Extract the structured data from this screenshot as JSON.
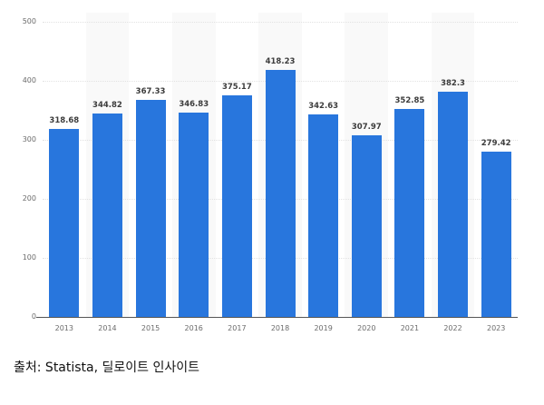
{
  "chart_data": {
    "type": "bar",
    "title": "",
    "xlabel": "",
    "ylabel": "",
    "categories": [
      "2013",
      "2014",
      "2015",
      "2016",
      "2017",
      "2018",
      "2019",
      "2020",
      "2021",
      "2022",
      "2023"
    ],
    "values": [
      318.68,
      344.82,
      367.33,
      346.83,
      375.17,
      418.23,
      342.63,
      307.97,
      352.85,
      382.3,
      279.42
    ],
    "value_labels": [
      "318.68",
      "344.82",
      "367.33",
      "346.83",
      "375.17",
      "418.23",
      "342.63",
      "307.97",
      "352.85",
      "382.3",
      "279.42"
    ],
    "ylim": [
      0,
      500
    ],
    "yticks": [
      "0",
      "100",
      "200",
      "300",
      "400",
      "500"
    ],
    "grid": true,
    "legend": null,
    "bar_color": "#2876dd"
  },
  "caption": {
    "source": "출처: Statista, 딜로이트 인사이트"
  }
}
